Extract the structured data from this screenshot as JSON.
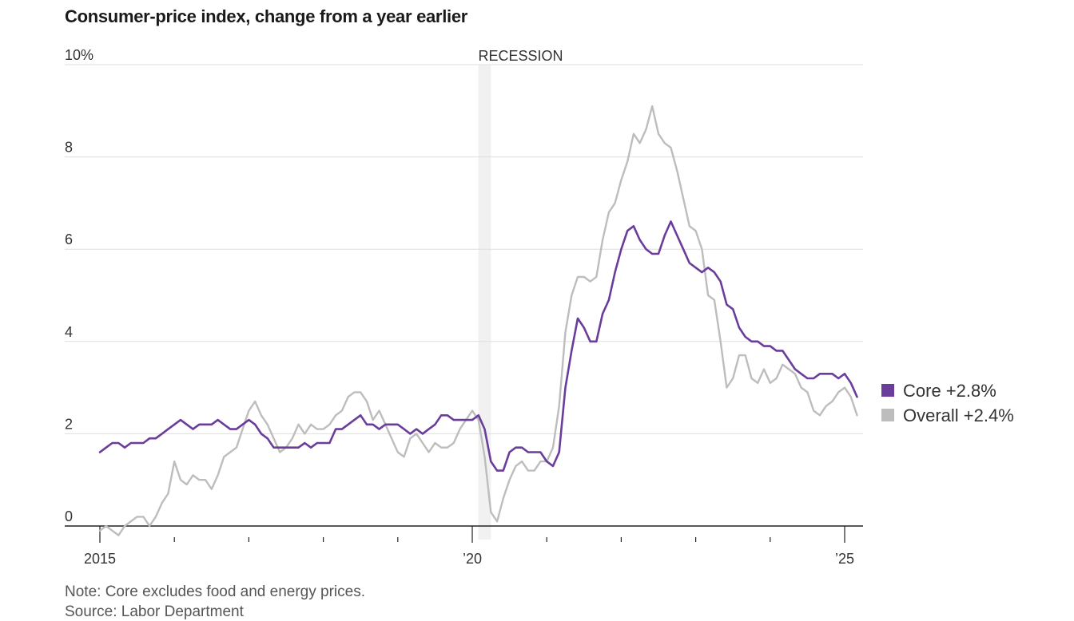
{
  "chart_data": {
    "type": "line",
    "title": "Consumer-price index, change from a year earlier",
    "xlabel": "",
    "ylabel": "",
    "ylim": [
      0,
      10
    ],
    "y_ticks": [
      {
        "value": 0,
        "label": "0"
      },
      {
        "value": 2,
        "label": "2"
      },
      {
        "value": 4,
        "label": "4"
      },
      {
        "value": 6,
        "label": "6"
      },
      {
        "value": 8,
        "label": "8"
      },
      {
        "value": 10,
        "label": "10%"
      }
    ],
    "x_range": [
      2015.0,
      2025.25
    ],
    "x_major_ticks": [
      {
        "value": 2015,
        "label": "2015"
      },
      {
        "value": 2020,
        "label": "’20"
      },
      {
        "value": 2025,
        "label": "’25"
      }
    ],
    "x_minor_ticks": [
      2016,
      2017,
      2018,
      2019,
      2021,
      2022,
      2023,
      2024
    ],
    "recession": {
      "start": 2020.08,
      "end": 2020.25,
      "label": "RECESSION"
    },
    "grid": true,
    "legend_position": "right",
    "series": [
      {
        "name": "Core",
        "legend_label": "Core +2.8%",
        "color": "#6a3d9a",
        "start": 2015.0,
        "step_months": 1,
        "values": [
          1.6,
          1.7,
          1.8,
          1.8,
          1.7,
          1.8,
          1.8,
          1.8,
          1.9,
          1.9,
          2.0,
          2.1,
          2.2,
          2.3,
          2.2,
          2.1,
          2.2,
          2.2,
          2.2,
          2.3,
          2.2,
          2.1,
          2.1,
          2.2,
          2.3,
          2.2,
          2.0,
          1.9,
          1.7,
          1.7,
          1.7,
          1.7,
          1.7,
          1.8,
          1.7,
          1.8,
          1.8,
          1.8,
          2.1,
          2.1,
          2.2,
          2.3,
          2.4,
          2.2,
          2.2,
          2.1,
          2.2,
          2.2,
          2.2,
          2.1,
          2.0,
          2.1,
          2.0,
          2.1,
          2.2,
          2.4,
          2.4,
          2.3,
          2.3,
          2.3,
          2.3,
          2.4,
          2.1,
          1.4,
          1.2,
          1.2,
          1.6,
          1.7,
          1.7,
          1.6,
          1.6,
          1.6,
          1.4,
          1.3,
          1.6,
          3.0,
          3.8,
          4.5,
          4.3,
          4.0,
          4.0,
          4.6,
          4.9,
          5.5,
          6.0,
          6.4,
          6.5,
          6.2,
          6.0,
          5.9,
          5.9,
          6.3,
          6.6,
          6.3,
          6.0,
          5.7,
          5.6,
          5.5,
          5.6,
          5.5,
          5.3,
          4.8,
          4.7,
          4.3,
          4.1,
          4.0,
          4.0,
          3.9,
          3.9,
          3.8,
          3.8,
          3.6,
          3.4,
          3.3,
          3.2,
          3.2,
          3.3,
          3.3,
          3.3,
          3.2,
          3.3,
          3.1,
          2.8
        ]
      },
      {
        "name": "Overall",
        "legend_label": "Overall +2.4%",
        "color": "#bdbdbd",
        "start": 2015.0,
        "step_months": 1,
        "values": [
          -0.1,
          0.0,
          -0.1,
          -0.2,
          0.0,
          0.1,
          0.2,
          0.2,
          0.0,
          0.2,
          0.5,
          0.7,
          1.4,
          1.0,
          0.9,
          1.1,
          1.0,
          1.0,
          0.8,
          1.1,
          1.5,
          1.6,
          1.7,
          2.1,
          2.5,
          2.7,
          2.4,
          2.2,
          1.9,
          1.6,
          1.7,
          1.9,
          2.2,
          2.0,
          2.2,
          2.1,
          2.1,
          2.2,
          2.4,
          2.5,
          2.8,
          2.9,
          2.9,
          2.7,
          2.3,
          2.5,
          2.2,
          1.9,
          1.6,
          1.5,
          1.9,
          2.0,
          1.8,
          1.6,
          1.8,
          1.7,
          1.7,
          1.8,
          2.1,
          2.3,
          2.5,
          2.3,
          1.5,
          0.3,
          0.1,
          0.6,
          1.0,
          1.3,
          1.4,
          1.2,
          1.2,
          1.4,
          1.4,
          1.7,
          2.6,
          4.2,
          5.0,
          5.4,
          5.4,
          5.3,
          5.4,
          6.2,
          6.8,
          7.0,
          7.5,
          7.9,
          8.5,
          8.3,
          8.6,
          9.1,
          8.5,
          8.3,
          8.2,
          7.7,
          7.1,
          6.5,
          6.4,
          6.0,
          5.0,
          4.9,
          4.0,
          3.0,
          3.2,
          3.7,
          3.7,
          3.2,
          3.1,
          3.4,
          3.1,
          3.2,
          3.5,
          3.4,
          3.3,
          3.0,
          2.9,
          2.5,
          2.4,
          2.6,
          2.7,
          2.9,
          3.0,
          2.8,
          2.4
        ]
      }
    ],
    "note": "Note: Core excludes food and energy prices.",
    "source": "Source: Labor Department"
  }
}
